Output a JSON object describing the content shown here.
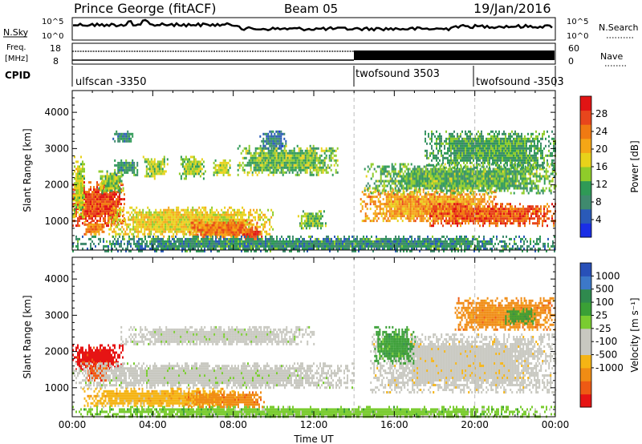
{
  "header": {
    "station": "Prince George (fitACF)",
    "beam": "Beam 05",
    "date": "19/Jan/2016"
  },
  "strips": {
    "nsky_label": "N.Sky",
    "nsky_ticks": [
      "10^5",
      "10^0"
    ],
    "nsearch_label": "N.Search",
    "freq_label_line1": "Freq.",
    "freq_label_line2": "[MHz]",
    "freq_ticks": [
      "18",
      "8"
    ],
    "nave_label": "Nave",
    "nave_ticks": [
      "60",
      "0"
    ],
    "cpid_label": "CPID",
    "cpid_segments": [
      {
        "name": "ulfscan -3350",
        "start_h": 0,
        "end_h": 14
      },
      {
        "name": "twofsound 3503",
        "start_h": 14,
        "end_h": 20
      },
      {
        "name": "twofsound -3503",
        "start_h": 20,
        "end_h": 24
      }
    ]
  },
  "chart_data": [
    {
      "type": "heatmap",
      "panel": "power",
      "xlabel": "Time UT",
      "ylabel": "Slant Range [km]",
      "xlim": [
        0,
        24
      ],
      "ylim": [
        200,
        4600
      ],
      "x_ticks": [
        "00:00",
        "04:00",
        "08:00",
        "12:00",
        "16:00",
        "20:00",
        "00:00"
      ],
      "y_ticks": [
        1000,
        2000,
        3000,
        4000
      ],
      "colorbar": {
        "label": "Power [dB]",
        "ticks": [
          4,
          8,
          12,
          16,
          20,
          24,
          28
        ],
        "range": [
          0,
          32
        ],
        "colors": [
          "#1a2ee6",
          "#2a5ab8",
          "#3f8a6e",
          "#2f9a56",
          "#8fcc2a",
          "#e8d21a",
          "#f5a616",
          "#f07a12",
          "#e8461c",
          "#e11414"
        ]
      },
      "regions": [
        {
          "x0": 0.0,
          "x1": 2.6,
          "y0": 900,
          "y1": 2100,
          "level": 27
        },
        {
          "x0": 0.5,
          "x1": 1.6,
          "y0": 650,
          "y1": 1000,
          "level": 23
        },
        {
          "x0": 0.0,
          "x1": 0.6,
          "y0": 1100,
          "y1": 2800,
          "level": 16
        },
        {
          "x0": 1.3,
          "x1": 2.5,
          "y0": 1800,
          "y1": 2400,
          "level": 14
        },
        {
          "x0": 2.0,
          "x1": 3.2,
          "y0": 2300,
          "y1": 2700,
          "level": 9
        },
        {
          "x0": 3.5,
          "x1": 4.7,
          "y0": 2200,
          "y1": 2800,
          "level": 14
        },
        {
          "x0": 5.3,
          "x1": 6.6,
          "y0": 2200,
          "y1": 2800,
          "level": 14
        },
        {
          "x0": 7.0,
          "x1": 7.8,
          "y0": 2300,
          "y1": 2700,
          "level": 15
        },
        {
          "x0": 1.8,
          "x1": 10.0,
          "y0": 600,
          "y1": 1400,
          "level": 18
        },
        {
          "x0": 5.8,
          "x1": 9.2,
          "y0": 550,
          "y1": 1050,
          "level": 24
        },
        {
          "x0": 8.5,
          "x1": 9.4,
          "y0": 450,
          "y1": 800,
          "level": 28
        },
        {
          "x0": 8.2,
          "x1": 13.2,
          "y0": 2300,
          "y1": 3100,
          "level": 13
        },
        {
          "x0": 9.3,
          "x1": 10.6,
          "y0": 3000,
          "y1": 3500,
          "level": 7
        },
        {
          "x0": 11.2,
          "x1": 12.6,
          "y0": 800,
          "y1": 1300,
          "level": 13
        },
        {
          "x0": 2.0,
          "x1": 3.0,
          "y0": 3200,
          "y1": 3500,
          "level": 8
        },
        {
          "x0": 14.3,
          "x1": 21.0,
          "y0": 1000,
          "y1": 1900,
          "level": 22
        },
        {
          "x0": 17.5,
          "x1": 24.0,
          "y0": 900,
          "y1": 1500,
          "level": 26
        },
        {
          "x0": 14.5,
          "x1": 24.0,
          "y0": 1800,
          "y1": 2600,
          "level": 12
        },
        {
          "x0": 17.5,
          "x1": 24.0,
          "y0": 2500,
          "y1": 3500,
          "level": 11
        },
        {
          "x0": 0.0,
          "x1": 24.0,
          "y0": 200,
          "y1": 600,
          "level": 9
        }
      ]
    },
    {
      "type": "heatmap",
      "panel": "velocity",
      "xlabel": "Time UT",
      "ylabel": "Slant Range [km]",
      "xlim": [
        0,
        24
      ],
      "ylim": [
        200,
        4600
      ],
      "x_ticks": [
        "00:00",
        "04:00",
        "08:00",
        "12:00",
        "16:00",
        "20:00",
        "00:00"
      ],
      "y_ticks": [
        1000,
        2000,
        3000,
        4000
      ],
      "colorbar": {
        "label": "Velocity [m s⁻¹]",
        "ticks": [
          "1000",
          "500",
          "100",
          "25",
          "-25",
          "-100",
          "-500",
          "-1000"
        ],
        "colors": [
          "#2850b8",
          "#3c78c8",
          "#2f8a4e",
          "#3aa036",
          "#7acc30",
          "#c8c8c0",
          "#c8c8c0",
          "#f5b414",
          "#f08c14",
          "#ee5a14",
          "#e61414"
        ]
      },
      "regions": [
        {
          "x0": 0.0,
          "x1": 2.5,
          "y0": 1500,
          "y1": 2200,
          "level": 10
        },
        {
          "x0": 0.6,
          "x1": 1.8,
          "y0": 1200,
          "y1": 1700,
          "level": 9
        },
        {
          "x0": 0.0,
          "x1": 14.0,
          "y0": 1000,
          "y1": 1700,
          "level": 5
        },
        {
          "x0": 2.4,
          "x1": 12.0,
          "y0": 2200,
          "y1": 2700,
          "level": 5
        },
        {
          "x0": 0.5,
          "x1": 8.0,
          "y0": 500,
          "y1": 1000,
          "level": 7
        },
        {
          "x0": 5.5,
          "x1": 9.5,
          "y0": 500,
          "y1": 900,
          "level": 8
        },
        {
          "x0": 0.0,
          "x1": 24.0,
          "y0": 200,
          "y1": 500,
          "level": 4
        },
        {
          "x0": 14.8,
          "x1": 24.0,
          "y0": 900,
          "y1": 2500,
          "level": 6
        },
        {
          "x0": 15.0,
          "x1": 17.0,
          "y0": 1700,
          "y1": 2700,
          "level": 3
        },
        {
          "x0": 19.0,
          "x1": 24.0,
          "y0": 2600,
          "y1": 3500,
          "level": 8
        },
        {
          "x0": 21.5,
          "x1": 23.0,
          "y0": 2800,
          "y1": 3200,
          "level": 3
        }
      ]
    }
  ]
}
